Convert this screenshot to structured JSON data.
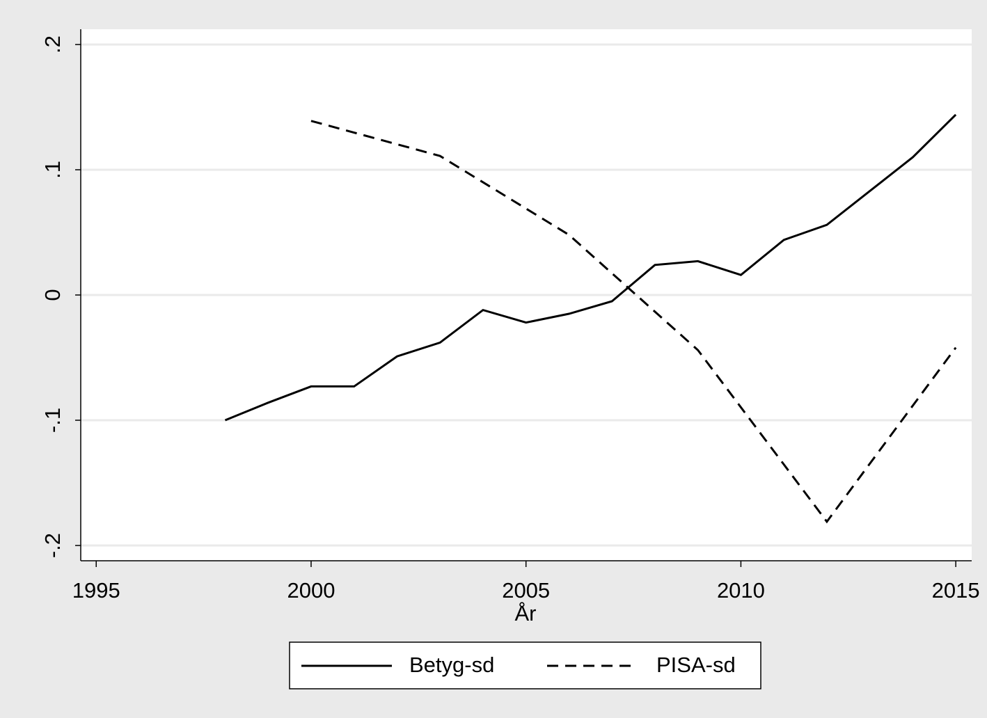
{
  "chart_data": {
    "type": "line",
    "x_label": "År",
    "xlim": [
      1994.64,
      2015.37
    ],
    "ylim": [
      -0.2122,
      0.2122
    ],
    "xticks": [
      1995,
      2000,
      2005,
      2010,
      2015
    ],
    "yticks": [
      {
        "value": 0.2,
        "label": ".2"
      },
      {
        "value": 0.1,
        "label": ".1"
      },
      0,
      {
        "value": -0.1,
        "label": "-.1"
      },
      {
        "value": -0.2,
        "label": "-.2"
      }
    ],
    "grid": true,
    "legend": "bottom",
    "series": [
      {
        "name": "Betyg-sd",
        "color": "#000000",
        "line_style": "solid",
        "x": [
          1998,
          1999,
          2000,
          2001,
          2002,
          2003,
          2004,
          2005,
          2006,
          2007,
          2008,
          2009,
          2010,
          2011,
          2012,
          2013,
          2014,
          2015
        ],
        "values": [
          -0.1,
          -0.086,
          -0.073,
          -0.073,
          -0.049,
          -0.038,
          -0.012,
          -0.022,
          -0.015,
          -0.005,
          0.024,
          0.027,
          0.016,
          0.044,
          0.056,
          0.083,
          0.11,
          0.144
        ]
      },
      {
        "name": "PISA-sd",
        "color": "#000000",
        "line_style": "dashed",
        "x": [
          2000,
          2003,
          2006,
          2009,
          2012,
          2015
        ],
        "values": [
          0.139,
          0.111,
          0.048,
          -0.044,
          -0.181,
          -0.042
        ]
      }
    ]
  }
}
